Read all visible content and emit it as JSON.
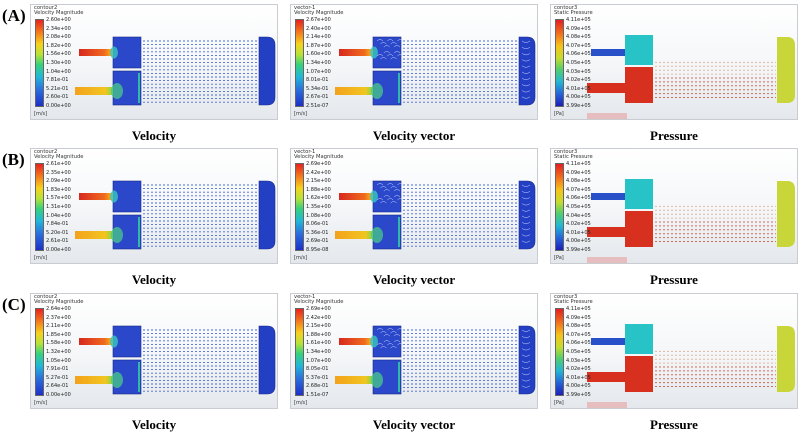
{
  "rows": [
    {
      "label": "(A)",
      "panels": [
        {
          "kind": "velocity",
          "header1": "contour2",
          "header2": "Velocity Magnitude",
          "unit": "[m/s]",
          "ticks": [
            "2.60e+00",
            "2.34e+00",
            "2.08e+00",
            "1.82e+00",
            "1.56e+00",
            "1.30e+00",
            "1.04e+00",
            "7.81e-01",
            "5.21e-01",
            "2.60e-01",
            "0.00e+00"
          ],
          "caption": "Velocity"
        },
        {
          "kind": "vector",
          "header1": "vector-1",
          "header2": "Velocity Magnitude",
          "unit": "[m/s]",
          "ticks": [
            "2.67e+00",
            "2.40e+00",
            "2.14e+00",
            "1.87e+00",
            "1.60e+00",
            "1.34e+00",
            "1.07e+00",
            "8.01e-01",
            "5.34e-01",
            "2.67e-01",
            "2.51e-07"
          ],
          "caption": "Velocity vector"
        },
        {
          "kind": "pressure",
          "header1": "contour3",
          "header2": "Static Pressure",
          "unit": "[Pa]",
          "ticks": [
            "4.11e+05",
            "4.09e+05",
            "4.08e+05",
            "4.07e+05",
            "4.06e+05",
            "4.05e+05",
            "4.03e+05",
            "4.02e+05",
            "4.01e+05",
            "4.00e+05",
            "3.99e+05"
          ],
          "caption": "Pressure"
        }
      ]
    },
    {
      "label": "(B)",
      "panels": [
        {
          "kind": "velocity",
          "header1": "contour2",
          "header2": "Velocity Magnitude",
          "unit": "[m/s]",
          "ticks": [
            "2.61e+00",
            "2.35e+00",
            "2.09e+00",
            "1.83e+00",
            "1.57e+00",
            "1.31e+00",
            "1.04e+00",
            "7.84e-01",
            "5.20e-01",
            "2.61e-01",
            "0.00e+00"
          ],
          "caption": "Velocity"
        },
        {
          "kind": "vector",
          "header1": "vector-1",
          "header2": "Velocity Magnitude",
          "unit": "[m/s]",
          "ticks": [
            "2.69e+00",
            "2.42e+00",
            "2.15e+00",
            "1.88e+00",
            "1.62e+00",
            "1.35e+00",
            "1.08e+00",
            "8.06e-01",
            "5.36e-01",
            "2.69e-01",
            "8.95e-08"
          ],
          "caption": "Velocity vector"
        },
        {
          "kind": "pressure",
          "header1": "contour3",
          "header2": "Static Pressure",
          "unit": "[Pa]",
          "ticks": [
            "4.11e+05",
            "4.09e+05",
            "4.08e+05",
            "4.07e+05",
            "4.06e+05",
            "4.05e+05",
            "4.04e+05",
            "4.02e+05",
            "4.01e+05",
            "4.00e+05",
            "3.99e+05"
          ],
          "caption": "Pressure"
        }
      ]
    },
    {
      "label": "(C)",
      "panels": [
        {
          "kind": "velocity",
          "header1": "contour2",
          "header2": "Velocity Magnitude",
          "unit": "[m/s]",
          "ticks": [
            "2.64e+00",
            "2.37e+00",
            "2.11e+00",
            "1.85e+00",
            "1.58e+00",
            "1.32e+00",
            "1.05e+00",
            "7.91e-01",
            "5.27e-01",
            "2.64e-01",
            "0.00e+00"
          ],
          "caption": "Velocity"
        },
        {
          "kind": "vector",
          "header1": "vector-1",
          "header2": "Velocity Magnitude",
          "unit": "[m/s]",
          "ticks": [
            "2.69e+00",
            "2.42e+00",
            "2.15e+00",
            "1.88e+00",
            "1.61e+00",
            "1.34e+00",
            "1.07e+00",
            "8.05e-01",
            "5.37e-01",
            "2.68e-01",
            "1.51e-07"
          ],
          "caption": "Velocity vector"
        },
        {
          "kind": "pressure",
          "header1": "contour3",
          "header2": "Static Pressure",
          "unit": "[Pa]",
          "ticks": [
            "4.11e+05",
            "4.09e+05",
            "4.08e+05",
            "4.07e+05",
            "4.06e+05",
            "4.05e+05",
            "4.03e+05",
            "4.02e+05",
            "4.01e+05",
            "4.00e+05",
            "3.99e+05"
          ],
          "caption": "Pressure"
        }
      ]
    }
  ]
}
